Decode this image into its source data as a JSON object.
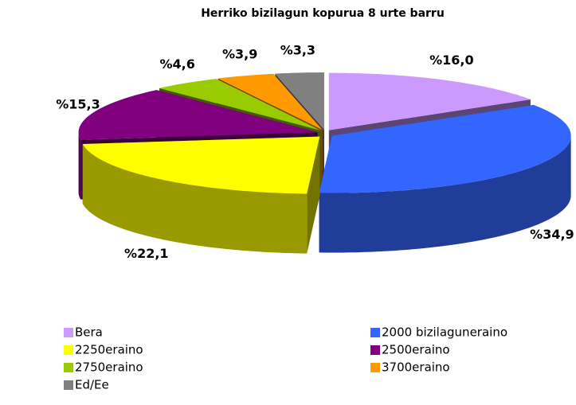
{
  "chart_data": {
    "type": "pie",
    "title": "Herriko bizilagun kopurua 8 urte barru",
    "categories": [
      "Bera",
      "2000 bizilaguneraino",
      "2250eraino",
      "2500eraino",
      "2750eraino",
      "3700eraino",
      "Ed/Ee"
    ],
    "values": [
      16.0,
      34.9,
      22.1,
      15.3,
      4.6,
      3.9,
      3.3
    ],
    "value_labels": [
      "%16,0",
      "%34,9",
      "%22,1",
      "%15,3",
      "%4,6",
      "%3,9",
      "%3,3"
    ],
    "colors": [
      "#cc99ff",
      "#3366ff",
      "#ffff00",
      "#800080",
      "#99cc00",
      "#ff9900",
      "#808080"
    ],
    "legend": "bottom"
  }
}
